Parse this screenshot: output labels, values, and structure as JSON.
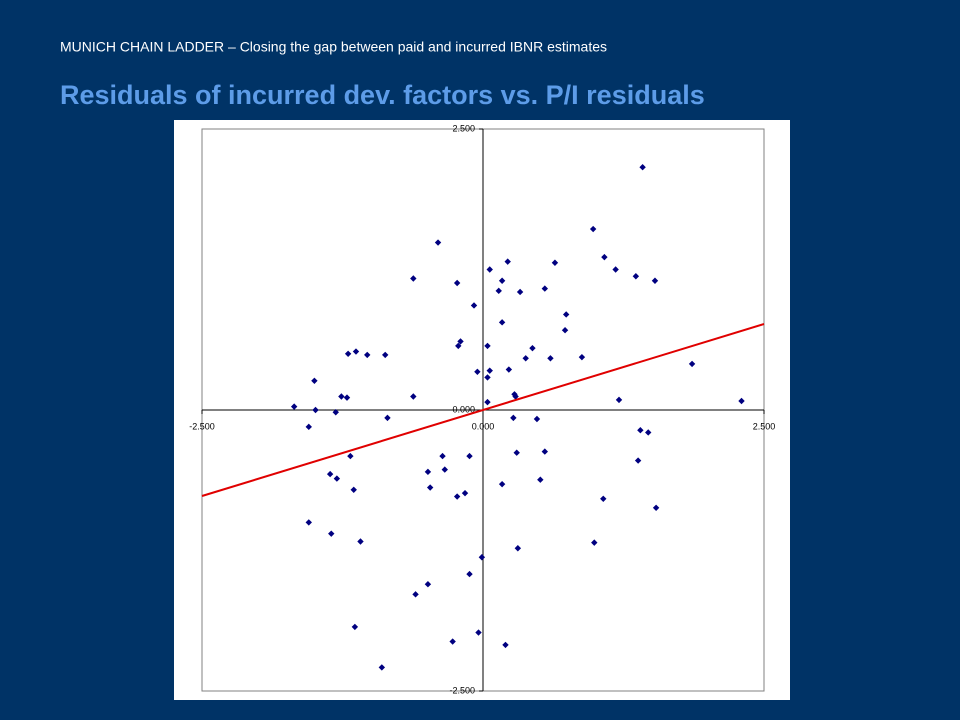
{
  "chart_data": {
    "type": "scatter",
    "subtitle": "MUNICH CHAIN LADDER – Closing the gap between paid and incurred IBNR estimates",
    "title": "Residuals of incurred dev. factors vs. P/I residuals",
    "xlim": [
      -2.5,
      2.5
    ],
    "ylim": [
      -2.5,
      2.5
    ],
    "xticks": [
      {
        "value": -2.5,
        "label": "-2.500"
      },
      {
        "value": 0,
        "label": "0.000"
      },
      {
        "value": 2.5,
        "label": "2.500"
      }
    ],
    "yticks": [
      {
        "value": 2.5,
        "label": "2.500"
      },
      {
        "value": 0,
        "label": "0.000"
      },
      {
        "value": -2.5,
        "label": "-2.500"
      }
    ],
    "series": [
      {
        "type": "scatter",
        "color": "#000080",
        "x": [
          1.42,
          0.98,
          -0.4,
          1.08,
          0.22,
          0.64,
          1.18,
          0.06,
          1.36,
          1.53,
          -0.62,
          -0.23,
          0.17,
          0.14,
          0.33,
          0.55,
          -0.08,
          0.74,
          0.17,
          0.73,
          -0.2,
          -0.22,
          0.04,
          -1.13,
          -1.2,
          -1.03,
          -0.87,
          0.44,
          0.38,
          0.6,
          0.88,
          1.86,
          0.23,
          -0.05,
          0.06,
          0.04,
          -1.5,
          -1.26,
          -1.21,
          -0.62,
          0.28,
          0.29,
          0.04,
          1.21,
          2.3,
          -1.68,
          -1.49,
          -1.31,
          -0.85,
          0.27,
          0.48,
          -1.55,
          1.4,
          1.47,
          0.55,
          0.3,
          -1.18,
          -0.36,
          -0.12,
          1.38,
          -0.34,
          -0.49,
          -1.36,
          -1.3,
          0.51,
          0.17,
          -0.47,
          -1.15,
          -0.16,
          -0.23,
          1.07,
          1.54,
          -1.55,
          -1.35,
          -1.09,
          0.99,
          0.31,
          -0.01,
          -0.12,
          -0.49,
          -0.6,
          -1.14,
          -0.04,
          -0.27,
          0.2,
          -0.9
        ],
        "values": [
          2.16,
          1.61,
          1.49,
          1.36,
          1.32,
          1.31,
          1.25,
          1.25,
          1.19,
          1.15,
          1.17,
          1.13,
          1.15,
          1.06,
          1.05,
          1.08,
          0.93,
          0.85,
          0.78,
          0.71,
          0.61,
          0.57,
          0.57,
          0.52,
          0.5,
          0.49,
          0.49,
          0.55,
          0.46,
          0.46,
          0.47,
          0.41,
          0.36,
          0.34,
          0.35,
          0.29,
          0.26,
          0.12,
          0.11,
          0.12,
          0.14,
          0.12,
          0.07,
          0.09,
          0.08,
          0.03,
          0.0,
          -0.02,
          -0.07,
          -0.07,
          -0.08,
          -0.15,
          -0.18,
          -0.2,
          -0.37,
          -0.38,
          -0.41,
          -0.41,
          -0.41,
          -0.45,
          -0.53,
          -0.55,
          -0.57,
          -0.61,
          -0.62,
          -0.66,
          -0.69,
          -0.71,
          -0.74,
          -0.77,
          -0.79,
          -0.87,
          -1.0,
          -1.1,
          -1.17,
          -1.18,
          -1.23,
          -1.31,
          -1.46,
          -1.55,
          -1.64,
          -1.93,
          -1.98,
          -2.06,
          -2.09,
          -2.29
        ]
      },
      {
        "type": "line",
        "color": "#e00000",
        "x": [
          -2.5,
          2.5
        ],
        "values": [
          -0.765,
          0.765
        ]
      }
    ]
  }
}
